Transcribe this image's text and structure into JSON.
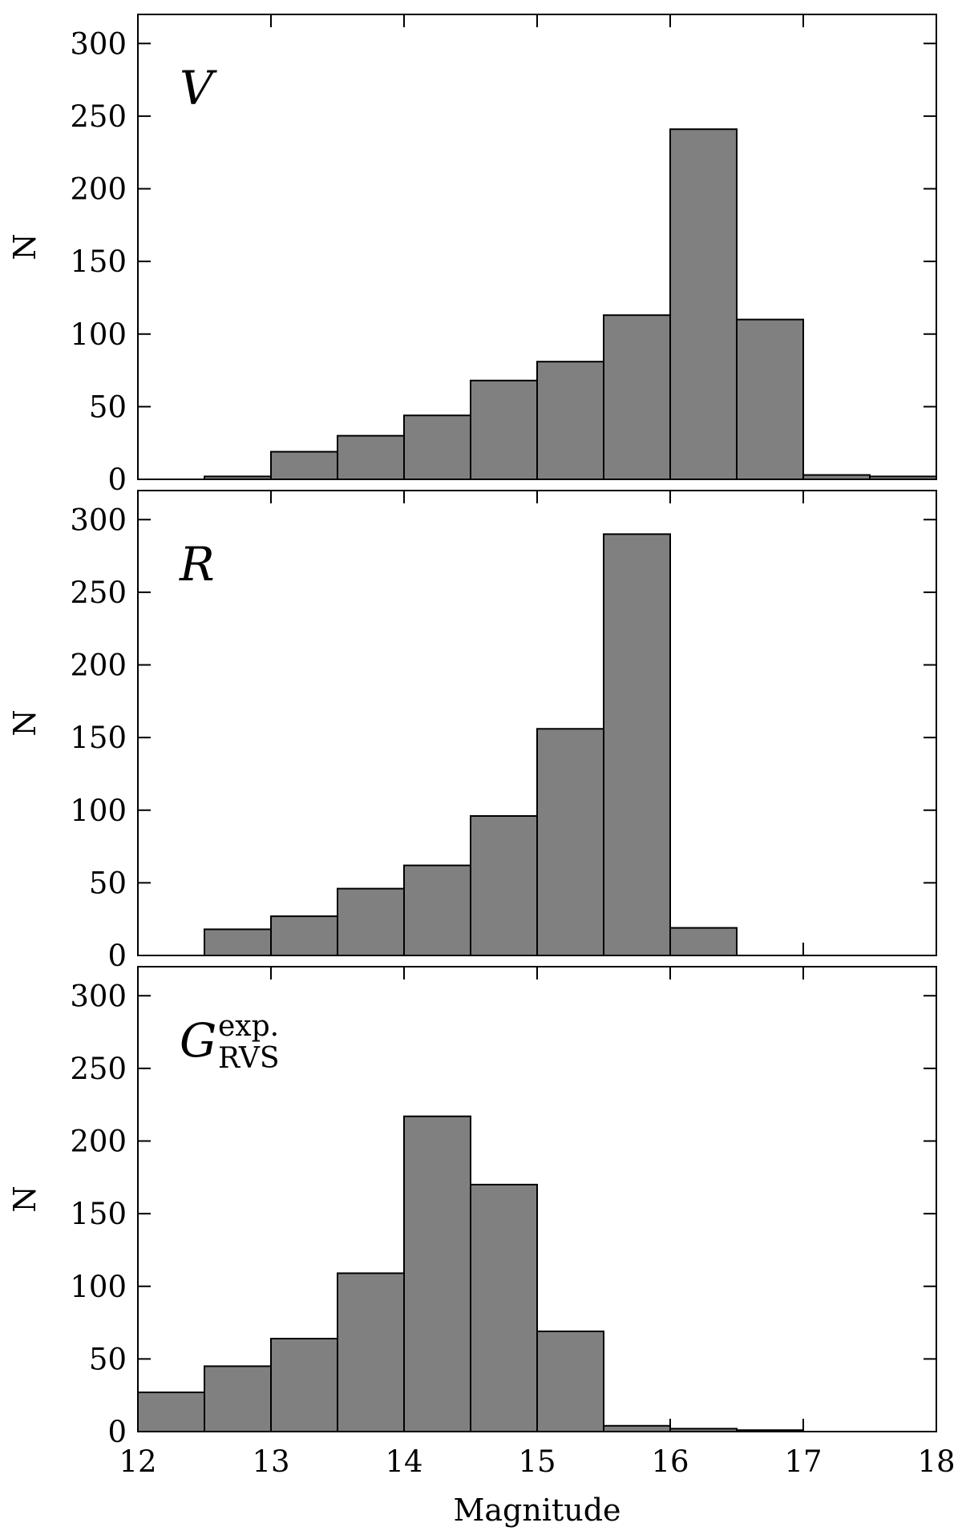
{
  "chart_data": [
    {
      "type": "bar",
      "label": "V",
      "bin_edges": [
        12,
        12.5,
        13,
        13.5,
        14,
        14.5,
        15,
        15.5,
        16,
        16.5,
        17,
        17.5,
        18
      ],
      "values": [
        0,
        2,
        19,
        30,
        44,
        68,
        81,
        113,
        241,
        110,
        3,
        2
      ],
      "ylabel": "N",
      "ylim": [
        0,
        320
      ],
      "yticks": [
        "0",
        "50",
        "100",
        "150",
        "200",
        "250",
        "300"
      ],
      "color": "#808080"
    },
    {
      "type": "bar",
      "label": "R",
      "bin_edges": [
        12,
        12.5,
        13,
        13.5,
        14,
        14.5,
        15,
        15.5,
        16,
        16.5,
        17,
        17.5,
        18
      ],
      "values": [
        0,
        18,
        27,
        46,
        62,
        96,
        156,
        290,
        19,
        0,
        0,
        0
      ],
      "ylabel": "N",
      "ylim": [
        0,
        320
      ],
      "yticks": [
        "0",
        "50",
        "100",
        "150",
        "200",
        "250",
        "300"
      ],
      "color": "#808080"
    },
    {
      "type": "bar",
      "label": "G",
      "label_sup": "exp.",
      "label_sub": "RVS",
      "bin_edges": [
        12,
        12.5,
        13,
        13.5,
        14,
        14.5,
        15,
        15.5,
        16,
        16.5,
        17,
        17.5,
        18
      ],
      "values": [
        27,
        45,
        64,
        109,
        217,
        170,
        69,
        4,
        2,
        1,
        0,
        0
      ],
      "ylabel": "N",
      "ylim": [
        0,
        320
      ],
      "yticks": [
        "0",
        "50",
        "100",
        "150",
        "200",
        "250",
        "300"
      ],
      "color": "#808080"
    }
  ],
  "xaxis": {
    "xlabel": "Magnitude",
    "xlim": [
      12,
      18
    ],
    "xticks": [
      "12",
      "13",
      "14",
      "15",
      "16",
      "17",
      "18"
    ]
  }
}
